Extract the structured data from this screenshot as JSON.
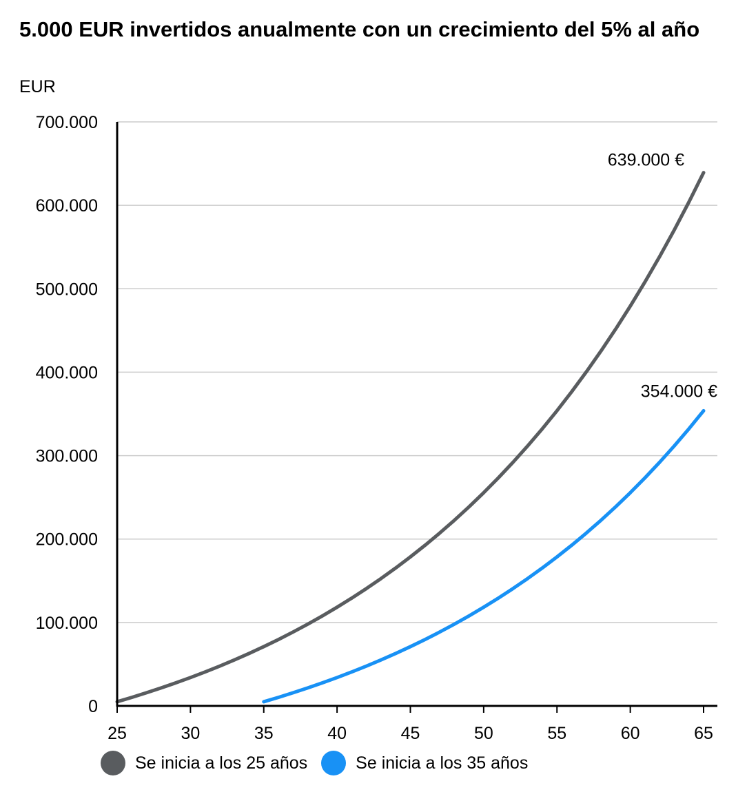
{
  "chart_data": {
    "type": "line",
    "title": "5.000 EUR invertidos anualmente con un crecimiento del 5% al año",
    "ylabel": "EUR",
    "xlabel": "",
    "xlim": [
      25,
      65
    ],
    "ylim": [
      0,
      700000
    ],
    "grid": true,
    "legend_position": "bottom-left",
    "x_ticks": [
      25,
      30,
      35,
      40,
      45,
      50,
      55,
      60,
      65
    ],
    "x_tick_labels": [
      "25",
      "30",
      "35",
      "40",
      "45",
      "50",
      "55",
      "60",
      "65"
    ],
    "y_ticks": [
      0,
      100000,
      200000,
      300000,
      400000,
      500000,
      600000,
      700000
    ],
    "y_tick_labels": [
      "0",
      "100.000",
      "200.000",
      "300.000",
      "400.000",
      "500.000",
      "600.000",
      "700.000"
    ],
    "series": [
      {
        "name": "Se inicia a los 25 años",
        "color": "#595c5f",
        "x": [
          25,
          26,
          27,
          28,
          29,
          30,
          31,
          32,
          33,
          34,
          35,
          36,
          37,
          38,
          39,
          40,
          41,
          42,
          43,
          44,
          45,
          46,
          47,
          48,
          49,
          50,
          51,
          52,
          53,
          54,
          55,
          56,
          57,
          58,
          59,
          60,
          61,
          62,
          63,
          64,
          65
        ],
        "values": [
          5000,
          10250,
          15763,
          21551,
          27628,
          34010,
          40710,
          47746,
          55133,
          62889,
          71034,
          79586,
          88565,
          97993,
          107893,
          118287,
          129202,
          140662,
          152695,
          165330,
          178596,
          192526,
          207152,
          222510,
          238635,
          255567,
          273346,
          292013,
          311614,
          332194,
          353804,
          376494,
          400319,
          425335,
          451602,
          479182,
          508141,
          538548,
          570476,
          603999,
          639199
        ],
        "end_label": "639.000 €"
      },
      {
        "name": "Se inicia a los 35 años",
        "color": "#1891f5",
        "x": [
          35,
          36,
          37,
          38,
          39,
          40,
          41,
          42,
          43,
          44,
          45,
          46,
          47,
          48,
          49,
          50,
          51,
          52,
          53,
          54,
          55,
          56,
          57,
          58,
          59,
          60,
          61,
          62,
          63,
          64,
          65
        ],
        "values": [
          5000,
          10250,
          15763,
          21551,
          27628,
          34010,
          40710,
          47746,
          55133,
          62889,
          71034,
          79586,
          88565,
          97993,
          107893,
          118287,
          129202,
          140662,
          152695,
          165330,
          178596,
          192526,
          207152,
          222510,
          238635,
          255567,
          273346,
          292013,
          311614,
          332194,
          353804
        ],
        "end_label": "354.000 €"
      }
    ]
  }
}
